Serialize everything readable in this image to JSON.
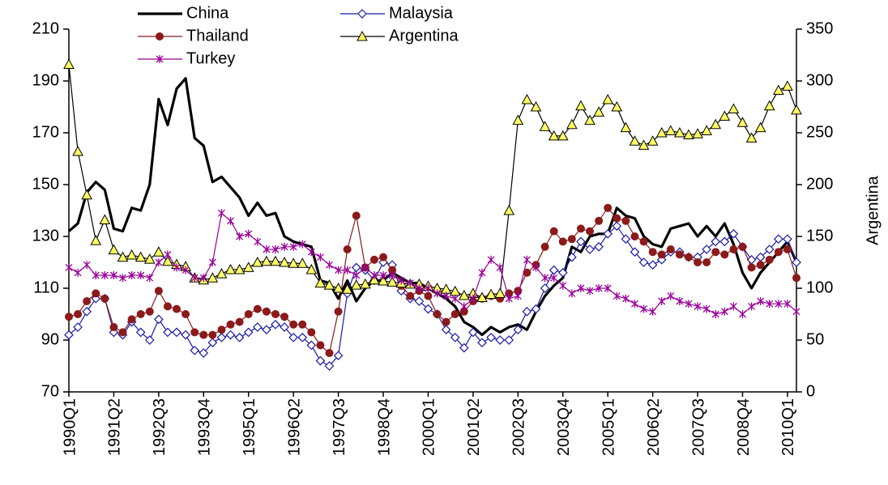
{
  "chart_data": {
    "type": "line",
    "y2_label": "Argentina",
    "categories": [
      "1990Q1",
      null,
      null,
      null,
      null,
      "1991Q2",
      null,
      null,
      null,
      null,
      "1992Q3",
      null,
      null,
      null,
      null,
      "1993Q4",
      null,
      null,
      null,
      null,
      "1995Q1",
      null,
      null,
      null,
      null,
      "1996Q2",
      null,
      null,
      null,
      null,
      "1997Q3",
      null,
      null,
      null,
      null,
      "1998Q4",
      null,
      null,
      null,
      null,
      "2000Q1",
      null,
      null,
      null,
      null,
      "2001Q2",
      null,
      null,
      null,
      null,
      "2002Q3",
      null,
      null,
      null,
      null,
      "2003Q4",
      null,
      null,
      null,
      null,
      "2005Q1",
      null,
      null,
      null,
      null,
      "2006Q2",
      null,
      null,
      null,
      null,
      "2007Q3",
      null,
      null,
      null,
      null,
      "2008Q4",
      null,
      null,
      null,
      null,
      "2010Q1",
      null
    ],
    "ylim": [
      70,
      210
    ],
    "yticks": [
      70,
      90,
      110,
      130,
      150,
      170,
      190,
      210
    ],
    "y2lim": [
      0,
      350
    ],
    "y2ticks": [
      0,
      50,
      100,
      150,
      200,
      250,
      300,
      350
    ],
    "series": [
      {
        "name": "China",
        "color": "#000000",
        "marker": "none",
        "width": 3.2,
        "values": [
          132,
          135,
          147,
          151,
          148,
          133,
          132,
          141,
          140,
          150,
          183,
          173,
          187,
          191,
          168,
          165,
          151,
          153,
          149,
          145,
          138,
          143,
          138,
          139,
          130,
          128,
          127,
          126,
          113,
          112,
          106,
          113,
          105,
          110,
          113,
          113,
          116,
          114,
          112,
          112,
          110,
          108,
          106,
          103,
          97,
          95,
          92,
          95,
          93,
          95,
          96,
          94,
          101,
          107,
          111,
          114,
          126,
          124,
          130,
          131,
          131,
          141,
          138,
          137,
          130,
          127,
          126,
          133,
          134,
          135,
          130,
          134,
          130,
          135,
          127,
          116,
          110,
          116,
          120,
          124,
          128,
          120
        ]
      },
      {
        "name": "Malaysia",
        "color": "#1a1aa0",
        "marker": "diamond",
        "width": 1.2,
        "values": [
          92,
          95,
          101,
          106,
          106,
          93,
          92,
          97,
          93,
          90,
          98,
          93,
          93,
          92,
          86,
          85,
          89,
          91,
          92,
          91,
          93,
          95,
          94,
          96,
          95,
          91,
          91,
          88,
          82,
          80,
          84,
          108,
          118,
          117,
          113,
          120,
          119,
          109,
          106,
          105,
          102,
          100,
          94,
          91,
          87,
          93,
          89,
          91,
          90,
          90,
          94,
          101,
          102,
          110,
          117,
          116,
          122,
          128,
          125,
          126,
          131,
          134,
          129,
          124,
          120,
          119,
          121,
          124,
          124,
          122,
          122,
          125,
          128,
          128,
          131,
          126,
          121,
          122,
          125,
          129,
          129,
          120
        ]
      },
      {
        "name": "Thailand",
        "color": "#8b1a1a",
        "marker": "circle",
        "width": 1.2,
        "values": [
          99,
          100,
          105,
          108,
          106,
          95,
          93,
          98,
          100,
          101,
          109,
          103,
          102,
          100,
          93,
          92,
          92,
          94,
          96,
          97,
          100,
          102,
          101,
          100,
          99,
          96,
          96,
          93,
          88,
          85,
          101,
          125,
          138,
          118,
          121,
          122,
          117,
          111,
          107,
          109,
          107,
          100,
          97,
          100,
          101,
          105,
          106,
          107,
          106,
          108,
          109,
          116,
          119,
          126,
          132,
          128,
          129,
          133,
          132,
          136,
          141,
          137,
          136,
          130,
          128,
          124,
          123,
          125,
          123,
          122,
          120,
          120,
          124,
          123,
          125,
          126,
          118,
          119,
          121,
          124,
          125,
          114
        ]
      },
      {
        "name": "Argentina",
        "color": "#000000",
        "marker": "triangle",
        "marker_fill": "#ffff66",
        "width": 1.2,
        "axis": "y2",
        "values": [
          316,
          232,
          190,
          146,
          166,
          137,
          130,
          132,
          130,
          128,
          135,
          126,
          123,
          121,
          110,
          108,
          110,
          114,
          118,
          118,
          120,
          125,
          126,
          126,
          125,
          124,
          124,
          118,
          105,
          103,
          100,
          99,
          103,
          104,
          108,
          107,
          106,
          105,
          104,
          104,
          102,
          100,
          99,
          97,
          93,
          95,
          91,
          94,
          95,
          175,
          262,
          282,
          275,
          256,
          247,
          247,
          258,
          276,
          262,
          270,
          282,
          275,
          255,
          242,
          238,
          242,
          250,
          252,
          250,
          248,
          249,
          252,
          258,
          266,
          273,
          260,
          245,
          255,
          276,
          291,
          295,
          272
        ]
      },
      {
        "name": "Turkey",
        "color": "#990099",
        "marker": "star",
        "width": 1.2,
        "values": [
          118,
          116,
          119,
          115,
          115,
          115,
          114,
          115,
          115,
          114,
          120,
          123,
          118,
          117,
          114,
          114,
          120,
          139,
          136,
          130,
          131,
          128,
          125,
          125,
          126,
          126,
          127,
          124,
          122,
          119,
          117,
          117,
          115,
          118,
          115,
          115,
          115,
          113,
          112,
          110,
          110,
          108,
          107,
          106,
          103,
          106,
          116,
          121,
          118,
          106,
          107,
          121,
          118,
          114,
          114,
          111,
          108,
          110,
          109,
          110,
          110,
          107,
          106,
          104,
          102,
          101,
          105,
          107,
          105,
          104,
          103,
          102,
          100,
          101,
          103,
          100,
          103,
          105,
          104,
          104,
          104,
          101
        ]
      }
    ]
  }
}
